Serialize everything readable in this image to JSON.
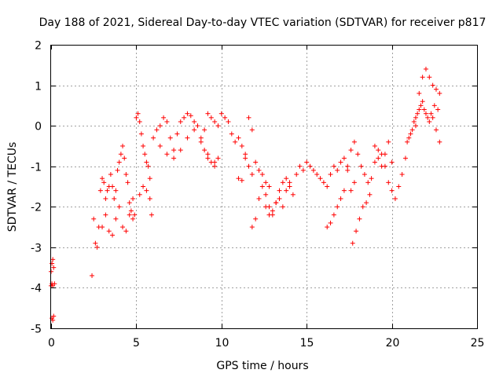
{
  "chart_data": {
    "type": "scatter",
    "title": "Day 188 of 2021, Sidereal Day-to-day VTEC variation (SDTVAR) for receiver p817",
    "xlabel": "GPS time / hours",
    "ylabel": "SDTVAR / TECUs",
    "xlim": [
      0,
      25
    ],
    "ylim": [
      -5,
      2
    ],
    "x_ticks": [
      "0",
      "5",
      "10",
      "15",
      "20",
      "25"
    ],
    "y_ticks": [
      "-5",
      "-4",
      "-3",
      "-2",
      "-1",
      "0",
      "1",
      "2"
    ],
    "grid": true,
    "marker": "+",
    "series": [
      {
        "name": "SDTVAR",
        "color": "#ff0000",
        "x": [
          0.0,
          0.05,
          0.1,
          0.15,
          0.2,
          0.0,
          0.05,
          0.1,
          0.05,
          0.1,
          0.15,
          2.4,
          2.5,
          2.6,
          2.7,
          2.8,
          2.9,
          3.0,
          3.1,
          3.2,
          3.3,
          3.4,
          3.5,
          3.6,
          3.7,
          3.8,
          3.9,
          4.0,
          4.1,
          4.2,
          4.3,
          4.4,
          4.5,
          4.6,
          4.7,
          4.8,
          4.9,
          3.0,
          3.2,
          3.4,
          3.6,
          3.8,
          4.0,
          4.2,
          4.4,
          4.6,
          4.8,
          5.0,
          5.1,
          5.2,
          5.3,
          5.4,
          5.5,
          5.6,
          5.7,
          5.8,
          5.9,
          5.2,
          5.4,
          5.6,
          5.8,
          6.0,
          6.2,
          6.4,
          6.6,
          6.8,
          7.0,
          7.2,
          7.4,
          7.6,
          7.8,
          8.0,
          8.2,
          8.4,
          8.6,
          8.8,
          9.0,
          9.2,
          9.4,
          9.6,
          9.8,
          6.4,
          6.8,
          7.2,
          7.6,
          8.0,
          8.4,
          8.8,
          9.2,
          9.6,
          9.0,
          9.2,
          9.4,
          9.6,
          9.8,
          10.0,
          10.2,
          10.4,
          10.6,
          10.8,
          11.0,
          11.2,
          11.4,
          11.6,
          11.8,
          11.0,
          11.2,
          11.4,
          11.6,
          11.8,
          12.0,
          12.2,
          12.4,
          12.6,
          12.8,
          11.8,
          12.0,
          12.2,
          12.4,
          12.6,
          12.8,
          13.0,
          13.2,
          13.4,
          13.6,
          13.8,
          14.0,
          14.2,
          14.4,
          14.6,
          14.8,
          12.6,
          12.8,
          13.0,
          13.2,
          13.4,
          13.6,
          13.8,
          14.0,
          15.0,
          15.2,
          15.4,
          15.6,
          15.8,
          16.0,
          16.2,
          16.4,
          16.6,
          16.8,
          17.0,
          17.2,
          17.4,
          17.6,
          17.8,
          16.2,
          16.4,
          16.6,
          16.8,
          17.0,
          17.2,
          17.4,
          17.6,
          17.8,
          18.0,
          18.2,
          18.4,
          18.6,
          18.8,
          19.0,
          19.2,
          19.4,
          19.6,
          19.8,
          20.0,
          20.2,
          20.4,
          20.6,
          17.7,
          17.9,
          18.1,
          18.3,
          18.5,
          18.7,
          19.0,
          19.2,
          19.4,
          19.6,
          19.8,
          20.0,
          20.8,
          21.0,
          21.2,
          21.4,
          21.6,
          21.8,
          22.0,
          22.2,
          22.4,
          22.6,
          22.8,
          21.4,
          21.6,
          21.8,
          22.0,
          22.2,
          22.4,
          22.6,
          22.8,
          20.9,
          21.1,
          21.3,
          21.5,
          21.7,
          21.9,
          22.1,
          22.3,
          22.5,
          22.7
        ],
        "y": [
          -3.6,
          -3.4,
          -3.3,
          -3.5,
          -3.9,
          -3.95,
          -3.9,
          -3.95,
          -4.75,
          -4.8,
          -4.7,
          -3.7,
          -2.3,
          -2.9,
          -3.0,
          -2.5,
          -1.6,
          -1.3,
          -1.4,
          -1.8,
          -1.6,
          -1.5,
          -1.2,
          -1.5,
          -1.8,
          -1.6,
          -1.1,
          -0.9,
          -0.7,
          -0.5,
          -0.8,
          -1.2,
          -1.4,
          -1.9,
          -2.1,
          -2.3,
          -2.2,
          -2.5,
          -2.2,
          -2.6,
          -2.7,
          -2.3,
          -2.0,
          -2.5,
          -2.6,
          -2.2,
          -1.8,
          0.2,
          0.3,
          0.1,
          -0.2,
          -0.5,
          -0.7,
          -0.9,
          -1.0,
          -1.8,
          -2.2,
          -1.7,
          -1.5,
          -1.6,
          -1.3,
          -0.3,
          -0.1,
          0.0,
          0.2,
          0.1,
          -0.3,
          -0.6,
          -0.2,
          0.1,
          0.2,
          0.3,
          0.25,
          0.1,
          0.0,
          -0.3,
          -0.1,
          0.3,
          0.2,
          0.1,
          0.0,
          -0.5,
          -0.7,
          -0.8,
          -0.6,
          -0.3,
          -0.1,
          -0.4,
          -0.7,
          -0.9,
          -0.6,
          -0.8,
          -0.9,
          -1.0,
          -0.8,
          0.3,
          0.2,
          0.1,
          -0.2,
          -0.4,
          -0.3,
          -0.5,
          -0.7,
          -1.0,
          -1.2,
          -1.3,
          -1.35,
          -0.8,
          0.2,
          -0.1,
          -0.9,
          -1.1,
          -1.2,
          -1.4,
          -1.5,
          -2.5,
          -2.3,
          -1.8,
          -1.5,
          -1.7,
          -2.0,
          -2.2,
          -1.9,
          -1.6,
          -1.4,
          -1.3,
          -1.5,
          -1.7,
          -1.2,
          -1.0,
          -1.1,
          -2.0,
          -2.2,
          -2.1,
          -1.9,
          -1.8,
          -2.0,
          -1.6,
          -1.4,
          -0.9,
          -1.0,
          -1.1,
          -1.2,
          -1.3,
          -1.4,
          -1.5,
          -1.2,
          -1.0,
          -1.1,
          -0.9,
          -0.8,
          -1.1,
          -1.6,
          -1.4,
          -2.5,
          -2.4,
          -2.2,
          -2.0,
          -1.8,
          -1.6,
          -1.0,
          -0.6,
          -0.4,
          -0.7,
          -1.0,
          -1.2,
          -1.4,
          -1.3,
          -0.9,
          -0.6,
          -0.7,
          -1.0,
          -1.4,
          -1.6,
          -1.8,
          -1.5,
          -1.2,
          -2.9,
          -2.6,
          -2.3,
          -2.0,
          -1.9,
          -1.7,
          -0.5,
          -0.8,
          -1.0,
          -0.7,
          -0.4,
          -0.9,
          -0.8,
          -0.3,
          -0.1,
          0.2,
          0.8,
          1.2,
          1.4,
          1.2,
          1.0,
          0.9,
          0.8,
          0.0,
          0.4,
          0.6,
          0.3,
          0.1,
          0.2,
          -0.1,
          -0.4,
          -0.4,
          -0.2,
          0.1,
          0.3,
          0.5,
          0.4,
          0.2,
          0.3,
          0.5,
          0.4
        ]
      }
    ]
  }
}
